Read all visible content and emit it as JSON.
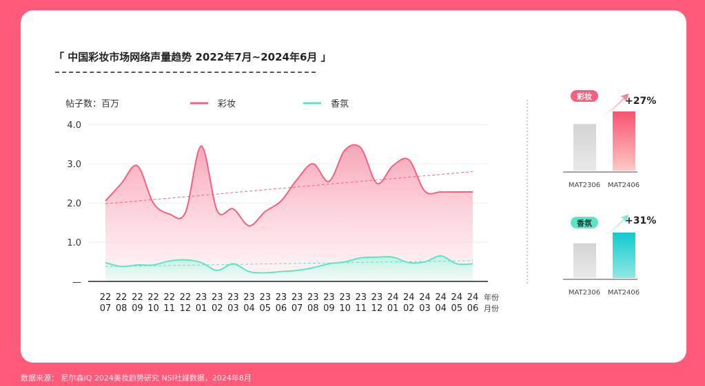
{
  "title": "「 中国彩妆市场网络声量趋势  2022年7月~2024年6月 」",
  "source": "数据来源：  尼尔森IQ 2024美妆趋势研究 NSI社媒数据，2024年8月",
  "colors": {
    "background": "#ff5a7a",
    "makeup": "#f4607e",
    "fragrance": "#5fe3c6",
    "grey_bar": "#d8d8d8",
    "makeup_badge": "#f4607e",
    "fragrance_badge": "#5fe3c6"
  },
  "chart_data": [
    {
      "type": "area",
      "ylabel": "帖子数：百万",
      "ylim": [
        0,
        4.0
      ],
      "yticks": [
        "4.0",
        "3.0",
        "2.0",
        "1.0",
        "—"
      ],
      "ytick_values": [
        4,
        3,
        2,
        1,
        0
      ],
      "categories": [
        "22/07",
        "22/08",
        "22/09",
        "22/10",
        "22/11",
        "22/12",
        "23/01",
        "23/02",
        "23/03",
        "23/04",
        "23/05",
        "23/06",
        "23/07",
        "23/08",
        "23/09",
        "23/10",
        "23/11",
        "23/12",
        "24/01",
        "24/02",
        "24/03",
        "24/04",
        "24/05",
        "24/06"
      ],
      "x_labels_year": [
        "22",
        "22",
        "22",
        "22",
        "22",
        "22",
        "23",
        "23",
        "23",
        "23",
        "23",
        "23",
        "23",
        "23",
        "23",
        "23",
        "23",
        "23",
        "24",
        "24",
        "24",
        "24",
        "24",
        "24"
      ],
      "x_labels_month": [
        "07",
        "08",
        "09",
        "10",
        "11",
        "12",
        "01",
        "02",
        "03",
        "04",
        "05",
        "06",
        "07",
        "08",
        "09",
        "10",
        "11",
        "12",
        "01",
        "02",
        "03",
        "04",
        "05",
        "06"
      ],
      "x_unit_year": "年份",
      "x_unit_month": "月份",
      "series": [
        {
          "name": "彩妆",
          "values": [
            2.05,
            2.5,
            2.95,
            2.0,
            1.72,
            1.75,
            3.45,
            1.8,
            1.85,
            1.42,
            1.78,
            2.05,
            2.6,
            3.0,
            2.55,
            3.35,
            3.4,
            2.5,
            2.95,
            3.1,
            2.3,
            2.28,
            2.28,
            2.28
          ],
          "trend": [
            1.98,
            2.8
          ]
        },
        {
          "name": "香氛",
          "values": [
            0.48,
            0.38,
            0.42,
            0.42,
            0.52,
            0.55,
            0.48,
            0.28,
            0.45,
            0.25,
            0.22,
            0.25,
            0.28,
            0.35,
            0.45,
            0.5,
            0.6,
            0.62,
            0.62,
            0.48,
            0.5,
            0.65,
            0.45,
            0.45
          ],
          "trend": [
            0.38,
            0.53
          ]
        }
      ]
    },
    {
      "type": "bar",
      "badge": "彩妆",
      "change": "+27%",
      "categories": [
        "MAT2306",
        "MAT2406"
      ],
      "values": [
        100,
        127
      ]
    },
    {
      "type": "bar",
      "badge": "香氛",
      "change": "+31%",
      "categories": [
        "MAT2306",
        "MAT2406"
      ],
      "values": [
        100,
        131
      ]
    }
  ]
}
